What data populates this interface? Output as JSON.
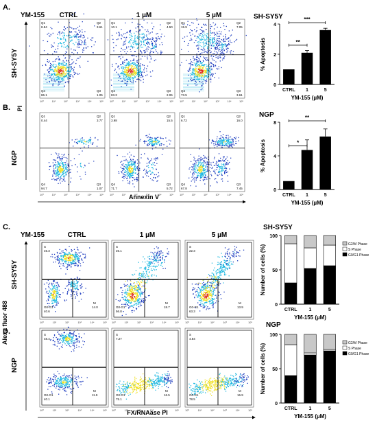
{
  "panels": {
    "A": {
      "label": "A.",
      "drug": "YM-155",
      "col_labels": [
        "CTRL",
        "1 µM",
        "5 µM"
      ],
      "row_labels": [
        "SH-SY5Y"
      ],
      "y_axis_label": "PI",
      "quadrant_labels": [
        "Q1",
        "Q2",
        "Q3",
        "Q4"
      ],
      "quadrant_values": [
        {
          "Q1": "8.84",
          "Q2": "3.61",
          "Q3": "1.05",
          "Q4": "86.1"
        },
        {
          "Q1": "10.1",
          "Q2": "4.50",
          "Q3": "2.06",
          "Q4": "83.3"
        },
        {
          "Q1": "15.9",
          "Q2": "7.05",
          "Q3": "3.61",
          "Q4": "73.5"
        }
      ]
    },
    "B": {
      "label": "B.",
      "row_labels": [
        "NGP"
      ],
      "y_axis_label": "PI",
      "x_axis_label": "Annexin V",
      "quadrant_labels": [
        "Q1",
        "Q2",
        "Q3",
        "Q4"
      ],
      "quadrant_values": [
        {
          "Q1": "0.44",
          "Q2": "3.77",
          "Q3": "1.07",
          "Q4": "94.7"
        },
        {
          "Q1": "3.98",
          "Q2": "15.5",
          "Q3": "5.72",
          "Q4": "71.7"
        },
        {
          "Q1": "6.72",
          "Q2": "16.0",
          "Q3": "7.45",
          "Q4": "67.8"
        }
      ]
    },
    "C": {
      "label": "C.",
      "drug": "YM-155",
      "col_labels": [
        "CTRL",
        "1 µM",
        "5 µM"
      ],
      "row_labels": [
        "SH-SY5Y"
      ],
      "gate_labels": [
        "S",
        "G0-G1",
        "M"
      ],
      "gate_values": [
        {
          "S": "45.3",
          "G0-G1": "40.6",
          "M": "14.0"
        },
        {
          "S": "25.1",
          "G0-G1": "56.8",
          "M": "18.7"
        },
        {
          "S": "22.3",
          "G0-G1": "63.3",
          "M": "13.9"
        }
      ]
    },
    "D": {
      "label": "D.",
      "row_labels": [
        "NGP"
      ],
      "y_axis_label": "Alexa fluor 488",
      "x_axis_label": "FX/RNAase PI",
      "gate_labels": [
        "S",
        "G0-G1",
        "M"
      ],
      "gate_values": [
        {
          "S": "48.4",
          "G0-G1": "40.1",
          "M": "11.9"
        },
        {
          "S": "7.27",
          "G0-G1": "75.1",
          "M": "16.5"
        },
        {
          "S": "4.84",
          "G0-G1": "78.5",
          "M": "16.9"
        }
      ]
    }
  },
  "tick_labels": {
    "flow": [
      "10⁰",
      "10¹",
      "10²",
      "10³",
      "10⁴",
      "10⁵"
    ]
  },
  "colors": {
    "density_low": "#1f3dbf",
    "density_mid": "#1fb8e0",
    "density_high": "#f0e020",
    "density_peak": "#e0301f",
    "bar_dark": "#000000",
    "bar_white": "#ffffff",
    "bar_grey": "#c8c8c8"
  },
  "chart_data": [
    {
      "type": "bar",
      "title": "SH-SY5Y",
      "categories": [
        "CTRL",
        "1",
        "5"
      ],
      "values": [
        1.0,
        2.1,
        3.6
      ],
      "errors": [
        0,
        0.15,
        0.12
      ],
      "xlabel": "YM-155 (µM)",
      "ylabel": "% Apoptosis",
      "ylim": [
        0,
        4
      ],
      "yticks": [
        "0",
        "2",
        "4"
      ],
      "significance": [
        {
          "from": "CTRL",
          "to": "1",
          "label": "**"
        },
        {
          "from": "CTRL",
          "to": "5",
          "label": "***"
        }
      ]
    },
    {
      "type": "bar",
      "title": "NGP",
      "categories": [
        "CTRL",
        "1",
        "5"
      ],
      "values": [
        1.0,
        4.7,
        6.3
      ],
      "errors": [
        0,
        1.2,
        0.9
      ],
      "xlabel": "YM-155 (µM)",
      "ylabel": "% Apoptosis",
      "ylim": [
        0,
        8
      ],
      "yticks": [
        "0",
        "4",
        "8"
      ],
      "significance": [
        {
          "from": "CTRL",
          "to": "1",
          "label": "*"
        },
        {
          "from": "CTRL",
          "to": "5",
          "label": "**"
        }
      ]
    },
    {
      "type": "bar",
      "stacked": true,
      "title": "SH-SY5Y",
      "categories": [
        "CTRL",
        "1",
        "5"
      ],
      "series": [
        {
          "name": "G0/G1 Phase",
          "values": [
            31,
            52,
            56
          ]
        },
        {
          "name": "S Phase",
          "values": [
            57,
            30,
            30
          ]
        },
        {
          "name": "G2/M Phase",
          "values": [
            12,
            18,
            14
          ]
        }
      ],
      "xlabel": "YM-155 (µM)",
      "ylabel": "Number of cells (%)",
      "ylim": [
        0,
        100
      ],
      "yticks": [
        "0",
        "50",
        "100"
      ],
      "legend": "right"
    },
    {
      "type": "bar",
      "stacked": true,
      "title": "NGP",
      "categories": [
        "CTRL",
        "1",
        "5"
      ],
      "series": [
        {
          "name": "G0/G1 Phase",
          "values": [
            40,
            70,
            76
          ]
        },
        {
          "name": "S Phase",
          "values": [
            45,
            3,
            2
          ]
        },
        {
          "name": "G2/M Phase",
          "values": [
            15,
            27,
            22
          ]
        }
      ],
      "xlabel": "YM-155 (µM)",
      "ylabel": "Number of cells (%)",
      "ylim": [
        0,
        100
      ],
      "yticks": [
        "0",
        "50",
        "100"
      ],
      "legend": "right"
    }
  ]
}
